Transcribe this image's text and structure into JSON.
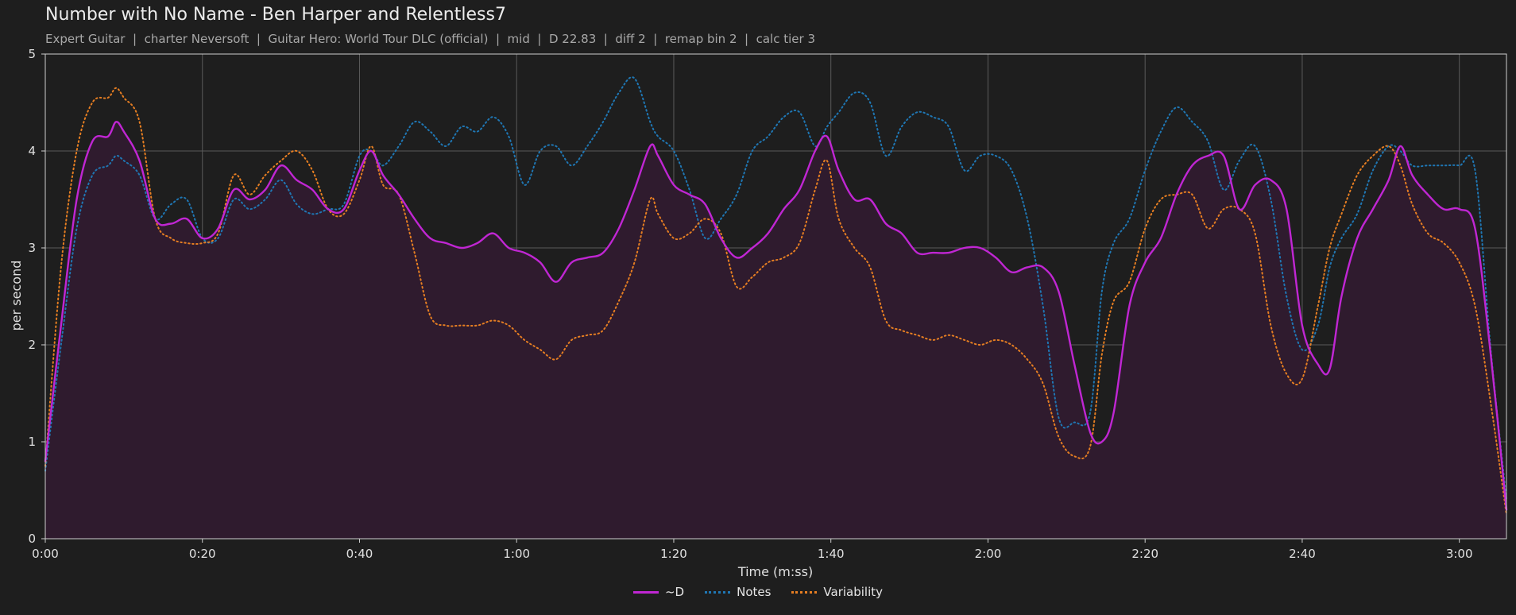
{
  "header": {
    "title": "Number with No Name - Ben Harper and Relentless7",
    "subtitle": "Expert Guitar  |  charter Neversoft  |  Guitar Hero: World Tour DLC (official)  |  mid  |  D 22.83  |  diff 2  |  remap bin 2  |  calc tier 3"
  },
  "colors": {
    "background": "#1e1e1e",
    "d_line": "#c026d3",
    "notes_line": "#1f77b4",
    "variability_line": "#e67e22",
    "fill": "#2f1b2e",
    "grid": "#5a5a5a"
  },
  "chart_data": {
    "type": "line",
    "xlabel": "Time (m:ss)",
    "ylabel": "per second",
    "xlim": [
      0,
      186
    ],
    "ylim": [
      0,
      5
    ],
    "grid": true,
    "legend_position": "bottom-center",
    "x_ticks": [
      {
        "value": 0,
        "label": "0:00"
      },
      {
        "value": 20,
        "label": "0:20"
      },
      {
        "value": 40,
        "label": "0:40"
      },
      {
        "value": 60,
        "label": "1:00"
      },
      {
        "value": 80,
        "label": "1:20"
      },
      {
        "value": 100,
        "label": "1:40"
      },
      {
        "value": 120,
        "label": "2:00"
      },
      {
        "value": 140,
        "label": "2:20"
      },
      {
        "value": 160,
        "label": "2:40"
      },
      {
        "value": 180,
        "label": "3:00"
      }
    ],
    "y_ticks": [
      0,
      1,
      2,
      3,
      4,
      5
    ],
    "x": [
      0,
      2,
      4,
      6,
      8,
      9,
      10,
      12,
      14,
      16,
      18,
      20,
      22,
      24,
      26,
      28,
      30,
      32,
      34,
      36,
      38,
      40,
      41.5,
      43,
      45,
      47,
      49,
      51,
      53,
      55,
      57,
      59,
      61,
      63,
      65,
      67,
      69,
      71,
      73,
      75,
      77,
      78,
      80,
      82,
      84,
      86,
      88,
      90,
      92,
      94,
      96,
      98,
      99.5,
      101,
      103,
      105,
      107,
      109,
      111,
      113,
      115,
      117,
      119,
      121,
      123,
      125,
      127,
      129,
      131,
      133,
      134.5,
      136,
      138,
      140,
      142,
      144,
      146,
      148,
      150,
      152,
      154,
      156,
      158,
      160,
      162,
      163.5,
      165,
      167,
      169,
      171,
      172.5,
      174,
      176,
      178,
      180,
      182,
      184,
      186
    ],
    "series": [
      {
        "name": "~D",
        "style": "solid",
        "values": [
          0.8,
          2.2,
          3.5,
          4.1,
          4.15,
          4.3,
          4.2,
          3.9,
          3.3,
          3.25,
          3.3,
          3.1,
          3.2,
          3.6,
          3.5,
          3.6,
          3.85,
          3.7,
          3.6,
          3.4,
          3.4,
          3.8,
          4.0,
          3.75,
          3.55,
          3.3,
          3.1,
          3.05,
          3.0,
          3.05,
          3.15,
          3.0,
          2.95,
          2.85,
          2.65,
          2.85,
          2.9,
          2.95,
          3.2,
          3.6,
          4.05,
          3.95,
          3.65,
          3.55,
          3.45,
          3.1,
          2.9,
          3.0,
          3.15,
          3.4,
          3.6,
          4.0,
          4.15,
          3.8,
          3.5,
          3.5,
          3.25,
          3.15,
          2.95,
          2.95,
          2.95,
          3.0,
          3.0,
          2.9,
          2.75,
          2.8,
          2.8,
          2.55,
          1.8,
          1.1,
          1.0,
          1.3,
          2.4,
          2.85,
          3.1,
          3.55,
          3.85,
          3.95,
          3.95,
          3.4,
          3.65,
          3.7,
          3.4,
          2.2,
          1.8,
          1.75,
          2.5,
          3.1,
          3.4,
          3.7,
          4.05,
          3.75,
          3.55,
          3.4,
          3.4,
          3.2,
          1.9,
          0.3
        ]
      },
      {
        "name": "Notes",
        "style": "dotted",
        "values": [
          0.7,
          2.0,
          3.2,
          3.75,
          3.85,
          3.95,
          3.9,
          3.75,
          3.3,
          3.45,
          3.5,
          3.1,
          3.1,
          3.5,
          3.4,
          3.5,
          3.7,
          3.45,
          3.35,
          3.4,
          3.45,
          3.95,
          4.0,
          3.85,
          4.05,
          4.3,
          4.2,
          4.05,
          4.25,
          4.2,
          4.35,
          4.15,
          3.65,
          4.0,
          4.05,
          3.85,
          4.05,
          4.3,
          4.6,
          4.75,
          4.3,
          4.15,
          4.0,
          3.6,
          3.1,
          3.3,
          3.55,
          4.0,
          4.15,
          4.35,
          4.4,
          4.05,
          4.25,
          4.4,
          4.6,
          4.5,
          3.95,
          4.25,
          4.4,
          4.35,
          4.25,
          3.8,
          3.95,
          3.95,
          3.8,
          3.3,
          2.4,
          1.25,
          1.2,
          1.3,
          2.55,
          3.05,
          3.3,
          3.8,
          4.2,
          4.45,
          4.3,
          4.1,
          3.6,
          3.9,
          4.05,
          3.5,
          2.5,
          1.95,
          2.2,
          2.8,
          3.1,
          3.35,
          3.8,
          4.05,
          4.0,
          3.85,
          3.85,
          3.85,
          3.85,
          3.8,
          1.95,
          0.4
        ]
      },
      {
        "name": "Variability",
        "style": "dotted",
        "values": [
          0.75,
          2.8,
          4.0,
          4.5,
          4.55,
          4.65,
          4.55,
          4.3,
          3.3,
          3.1,
          3.05,
          3.05,
          3.15,
          3.75,
          3.55,
          3.75,
          3.9,
          4.0,
          3.8,
          3.4,
          3.35,
          3.7,
          4.05,
          3.65,
          3.55,
          2.95,
          2.3,
          2.2,
          2.2,
          2.2,
          2.25,
          2.2,
          2.05,
          1.95,
          1.85,
          2.05,
          2.1,
          2.15,
          2.45,
          2.85,
          3.5,
          3.35,
          3.1,
          3.15,
          3.3,
          3.15,
          2.6,
          2.7,
          2.85,
          2.9,
          3.05,
          3.6,
          3.9,
          3.3,
          3.0,
          2.8,
          2.25,
          2.15,
          2.1,
          2.05,
          2.1,
          2.05,
          2.0,
          2.05,
          2.0,
          1.85,
          1.6,
          1.05,
          0.85,
          0.95,
          1.9,
          2.45,
          2.65,
          3.2,
          3.5,
          3.55,
          3.55,
          3.2,
          3.4,
          3.4,
          3.15,
          2.2,
          1.7,
          1.65,
          2.4,
          3.0,
          3.35,
          3.75,
          3.95,
          4.05,
          3.85,
          3.45,
          3.15,
          3.05,
          2.85,
          2.4,
          1.4,
          0.25
        ]
      }
    ]
  }
}
